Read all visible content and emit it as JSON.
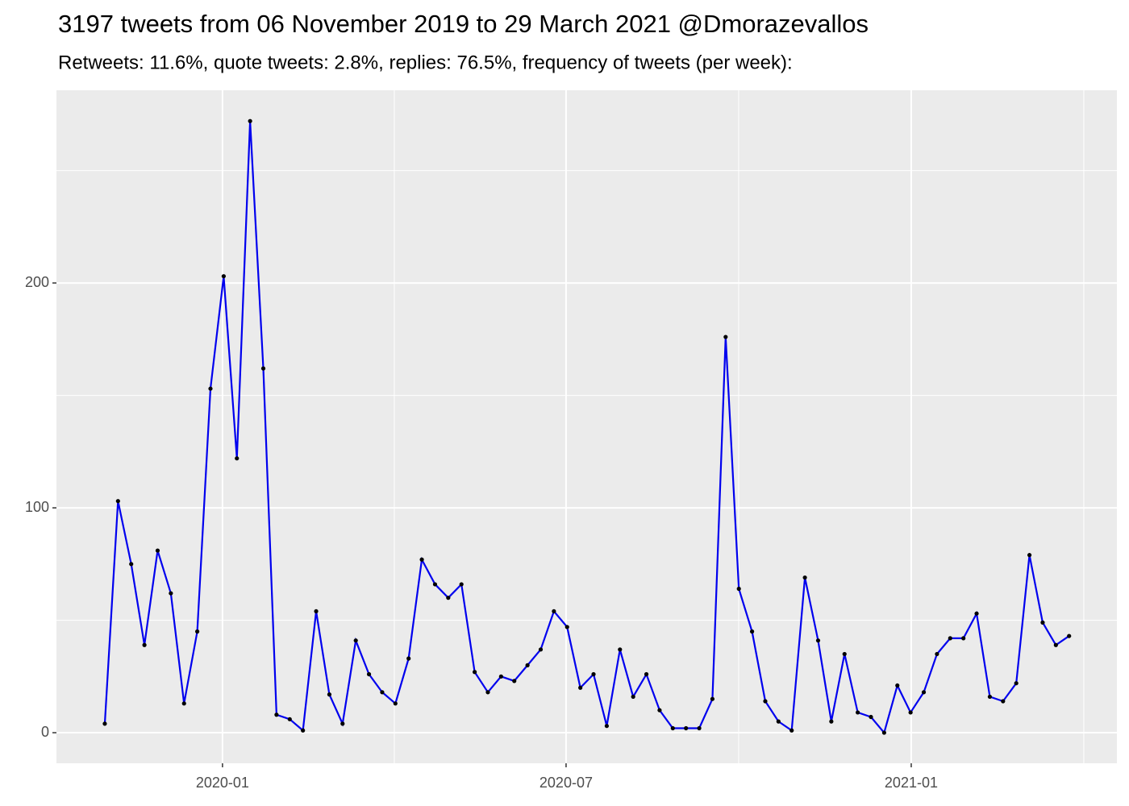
{
  "chart_data": {
    "type": "line",
    "title": "3197 tweets from 06 November 2019 to 29 March 2021 @Dmorazevallos",
    "subtitle": "Retweets: 11.6%, quote tweets: 2.8%, replies: 76.5%, frequency of tweets (per week):",
    "x": [
      0,
      1,
      2,
      3,
      4,
      5,
      6,
      7,
      8,
      9,
      10,
      11,
      12,
      13,
      14,
      15,
      16,
      17,
      18,
      19,
      20,
      21,
      22,
      23,
      24,
      25,
      26,
      27,
      28,
      29,
      30,
      31,
      32,
      33,
      34,
      35,
      36,
      37,
      38,
      39,
      40,
      41,
      42,
      43,
      44,
      45,
      46,
      47,
      48,
      49,
      50,
      51,
      52,
      53,
      54,
      55,
      56,
      57,
      58,
      59,
      60,
      61,
      62,
      63,
      64,
      65,
      66,
      67,
      68,
      69,
      70,
      71,
      72,
      73
    ],
    "series": [
      {
        "color": "#0000ee",
        "point_color": "#000000",
        "values": [
          4,
          103,
          75,
          39,
          81,
          62,
          13,
          45,
          153,
          203,
          122,
          272,
          162,
          8,
          6,
          1,
          54,
          17,
          4,
          41,
          26,
          18,
          13,
          33,
          77,
          66,
          60,
          66,
          27,
          18,
          25,
          23,
          30,
          37,
          54,
          47,
          20,
          26,
          3,
          37,
          16,
          26,
          10,
          2,
          2,
          2,
          15,
          176,
          64,
          45,
          14,
          5,
          1,
          69,
          41,
          5,
          35,
          9,
          7,
          0,
          21,
          9,
          18,
          35,
          42,
          42,
          53,
          16,
          14,
          22,
          79,
          49,
          39,
          43
        ]
      }
    ],
    "xlim": [
      -3.66,
      76.62
    ],
    "xticks": [
      {
        "value": 8.91,
        "label": "2020-01"
      },
      {
        "value": 34.92,
        "label": "2020-07"
      },
      {
        "value": 61.05,
        "label": "2021-01"
      }
    ],
    "ylim": [
      -13.6,
      285.7
    ],
    "yticks": [
      0,
      100,
      200
    ],
    "grid": true
  }
}
